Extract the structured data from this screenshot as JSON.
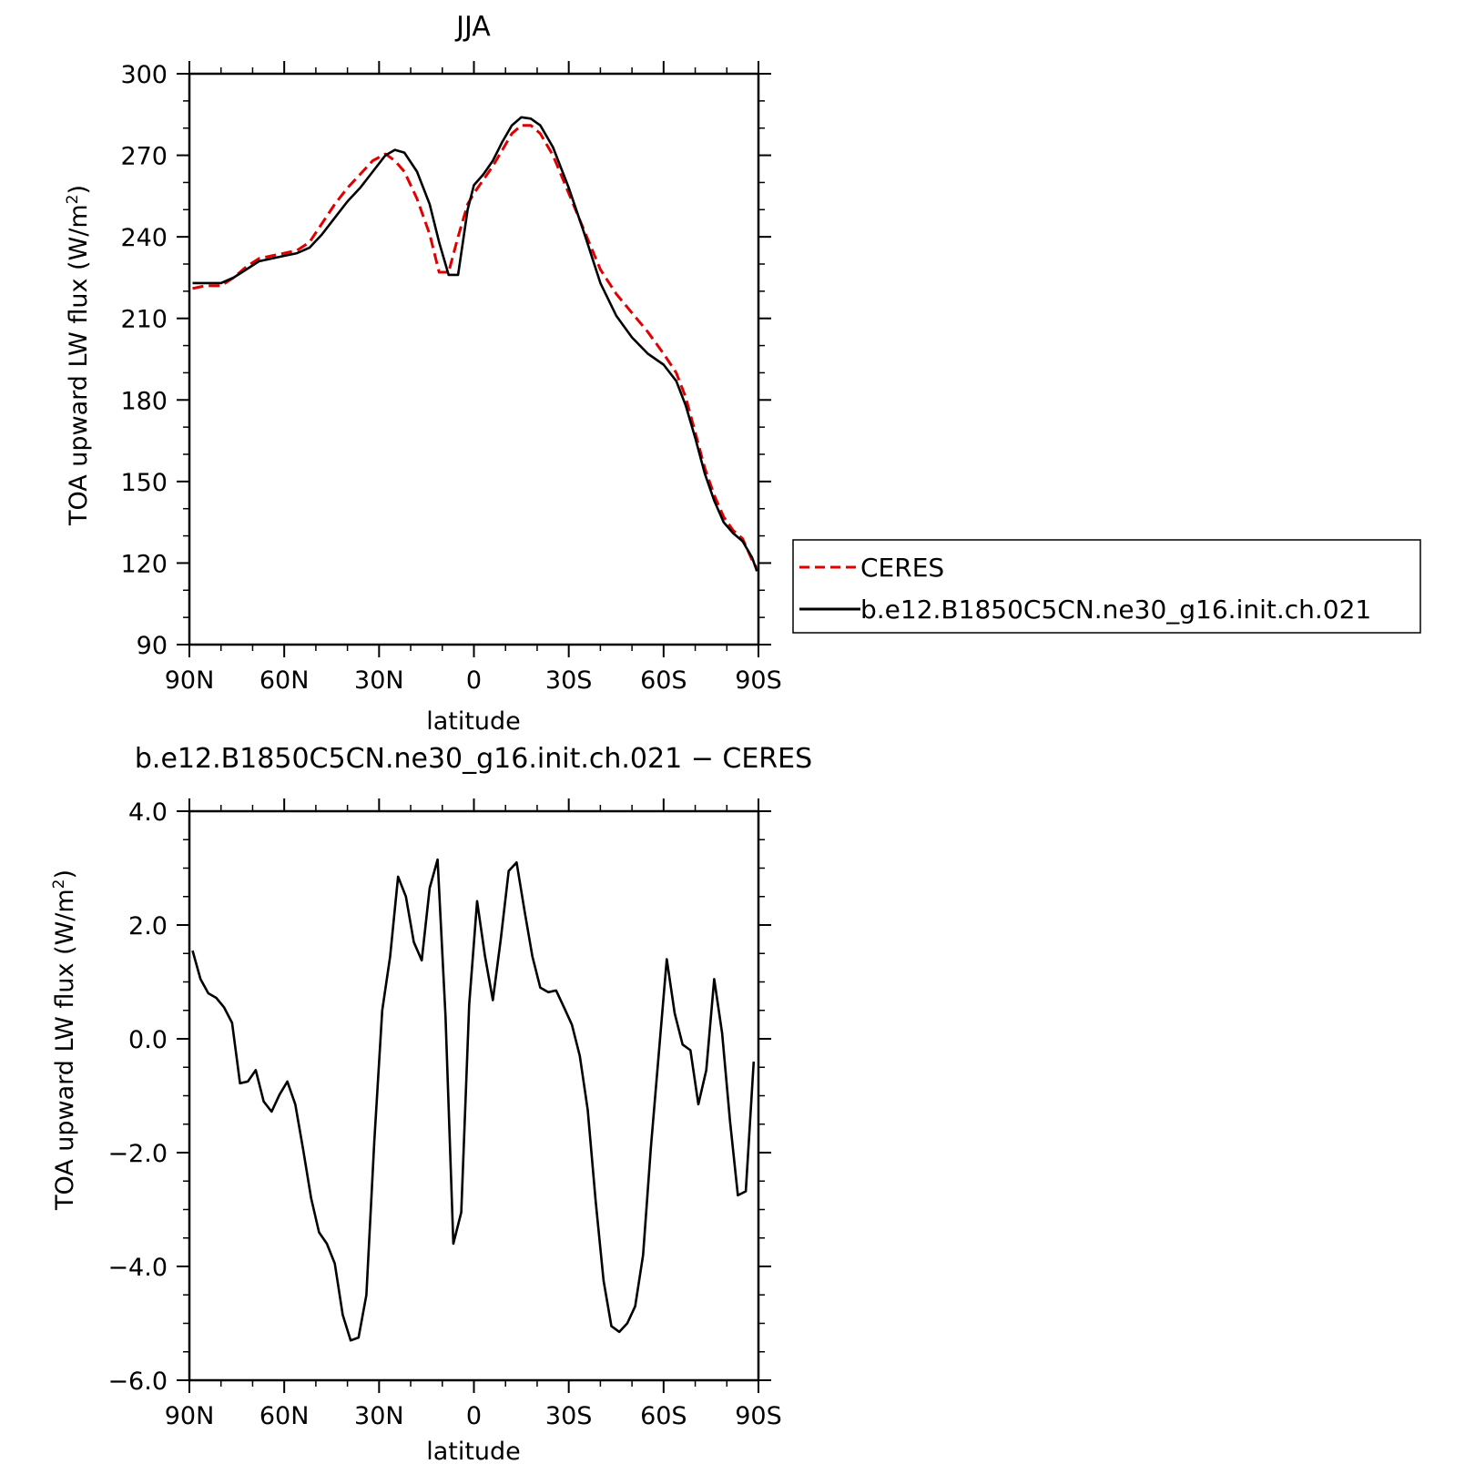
{
  "chart_data": [
    {
      "type": "line",
      "title": "JJA",
      "xlabel": "latitude",
      "ylabel": "TOA upward LW flux (W/m",
      "ylabel_sup": "2",
      "ylabel_close": ")",
      "xlim": [
        90,
        -90
      ],
      "ylim": [
        90,
        300
      ],
      "x_ticks": [
        {
          "value": 90,
          "label": "90N"
        },
        {
          "value": 60,
          "label": "60N"
        },
        {
          "value": 30,
          "label": "30N"
        },
        {
          "value": 0,
          "label": "0"
        },
        {
          "value": -30,
          "label": "30S"
        },
        {
          "value": -60,
          "label": "60S"
        },
        {
          "value": -90,
          "label": "90S"
        }
      ],
      "y_ticks": [
        {
          "value": 90,
          "label": "90"
        },
        {
          "value": 120,
          "label": "120"
        },
        {
          "value": 150,
          "label": "150"
        },
        {
          "value": 180,
          "label": "180"
        },
        {
          "value": 210,
          "label": "210"
        },
        {
          "value": 240,
          "label": "240"
        },
        {
          "value": 270,
          "label": "270"
        },
        {
          "value": 300,
          "label": "300"
        }
      ],
      "legend_position": "right, outside the plot",
      "series": [
        {
          "name": "CERES",
          "color": "#e00000",
          "dash": "dashed",
          "points": [
            [
              89,
              221
            ],
            [
              85,
              222
            ],
            [
              80,
              222
            ],
            [
              76,
              225
            ],
            [
              72,
              229
            ],
            [
              68,
              232
            ],
            [
              64,
              233
            ],
            [
              60,
              234
            ],
            [
              56,
              235
            ],
            [
              52,
              238
            ],
            [
              48,
              245
            ],
            [
              44,
              252
            ],
            [
              40,
              258
            ],
            [
              36,
              263
            ],
            [
              32,
              268
            ],
            [
              28,
              270.5
            ],
            [
              25,
              268
            ],
            [
              22,
              264
            ],
            [
              18,
              254
            ],
            [
              14,
              241
            ],
            [
              11,
              227
            ],
            [
              8,
              227
            ],
            [
              5,
              240
            ],
            [
              2,
              252
            ],
            [
              0,
              256
            ],
            [
              -3,
              261
            ],
            [
              -6,
              266
            ],
            [
              -9,
              272
            ],
            [
              -12,
              278
            ],
            [
              -15,
              281
            ],
            [
              -18,
              281
            ],
            [
              -21,
              278
            ],
            [
              -25,
              270
            ],
            [
              -30,
              256
            ],
            [
              -35,
              242
            ],
            [
              -40,
              228
            ],
            [
              -45,
              219
            ],
            [
              -50,
              212
            ],
            [
              -55,
              205
            ],
            [
              -60,
              197
            ],
            [
              -64,
              190
            ],
            [
              -67,
              181
            ],
            [
              -70,
              168
            ],
            [
              -73,
              155
            ],
            [
              -76,
              145
            ],
            [
              -79,
              137
            ],
            [
              -82,
              132
            ],
            [
              -85,
              129
            ],
            [
              -88,
              121
            ],
            [
              -89.5,
              118
            ]
          ]
        },
        {
          "name": "b.e12.B1850C5CN.ne30_g16.init.ch.021",
          "color": "#000000",
          "dash": "solid",
          "points": [
            [
              89,
              223
            ],
            [
              85,
              223
            ],
            [
              80,
              223
            ],
            [
              76,
              225
            ],
            [
              72,
              228
            ],
            [
              68,
              231
            ],
            [
              64,
              232
            ],
            [
              60,
              233
            ],
            [
              56,
              234
            ],
            [
              52,
              236
            ],
            [
              48,
              241
            ],
            [
              44,
              247
            ],
            [
              40,
              253
            ],
            [
              36,
              258
            ],
            [
              32,
              264
            ],
            [
              28,
              270
            ],
            [
              25,
              272
            ],
            [
              22,
              271
            ],
            [
              18,
              264
            ],
            [
              14,
              252
            ],
            [
              11,
              238
            ],
            [
              8,
              226
            ],
            [
              5,
              226
            ],
            [
              2,
              250
            ],
            [
              0,
              259
            ],
            [
              -3,
              263
            ],
            [
              -6,
              268
            ],
            [
              -9,
              275
            ],
            [
              -12,
              281
            ],
            [
              -15,
              284
            ],
            [
              -18,
              283.5
            ],
            [
              -21,
              281
            ],
            [
              -25,
              273
            ],
            [
              -30,
              258
            ],
            [
              -35,
              241
            ],
            [
              -40,
              223
            ],
            [
              -45,
              211
            ],
            [
              -50,
              203
            ],
            [
              -55,
              197
            ],
            [
              -60,
              193
            ],
            [
              -64,
              187
            ],
            [
              -67,
              178
            ],
            [
              -70,
              166
            ],
            [
              -73,
              153
            ],
            [
              -76,
              143
            ],
            [
              -79,
              135
            ],
            [
              -82,
              131
            ],
            [
              -85,
              128
            ],
            [
              -88,
              122
            ],
            [
              -89.5,
              117
            ]
          ]
        }
      ]
    },
    {
      "type": "line",
      "title": "b.e12.B1850C5CN.ne30_g16.init.ch.021 − CERES",
      "xlabel": "latitude",
      "ylabel": "TOA upward LW flux (W/m",
      "ylabel_sup": "2",
      "ylabel_close": ")",
      "xlim": [
        90,
        -90
      ],
      "ylim": [
        -6,
        4
      ],
      "x_ticks": [
        {
          "value": 90,
          "label": "90N"
        },
        {
          "value": 60,
          "label": "60N"
        },
        {
          "value": 30,
          "label": "30N"
        },
        {
          "value": 0,
          "label": "0"
        },
        {
          "value": -30,
          "label": "30S"
        },
        {
          "value": -60,
          "label": "60S"
        },
        {
          "value": -90,
          "label": "90S"
        }
      ],
      "y_ticks": [
        {
          "value": -6,
          "label": "−6.0"
        },
        {
          "value": -4,
          "label": "−4.0"
        },
        {
          "value": -2,
          "label": "−2.0"
        },
        {
          "value": 0,
          "label": "0.0"
        },
        {
          "value": 2,
          "label": "2.0"
        },
        {
          "value": 4,
          "label": "4.0"
        }
      ],
      "series": [
        {
          "color": "#000000",
          "dash": "solid",
          "points": [
            [
              89,
              1.55
            ],
            [
              86.5,
              1.05
            ],
            [
              84,
              0.8
            ],
            [
              81.5,
              0.72
            ],
            [
              79,
              0.55
            ],
            [
              76.5,
              0.28
            ],
            [
              74,
              -0.78
            ],
            [
              71.5,
              -0.75
            ],
            [
              69,
              -0.55
            ],
            [
              66.5,
              -1.1
            ],
            [
              64,
              -1.28
            ],
            [
              61.5,
              -0.98
            ],
            [
              59,
              -0.75
            ],
            [
              56.5,
              -1.15
            ],
            [
              54,
              -1.95
            ],
            [
              51.5,
              -2.8
            ],
            [
              49,
              -3.4
            ],
            [
              46.5,
              -3.6
            ],
            [
              44,
              -3.95
            ],
            [
              41.5,
              -4.85
            ],
            [
              39,
              -5.3
            ],
            [
              36.5,
              -5.25
            ],
            [
              34,
              -4.5
            ],
            [
              31.5,
              -1.8
            ],
            [
              29,
              0.5
            ],
            [
              26.5,
              1.45
            ],
            [
              24,
              2.85
            ],
            [
              21.5,
              2.5
            ],
            [
              19,
              1.7
            ],
            [
              16.5,
              1.38
            ],
            [
              14,
              2.65
            ],
            [
              11.5,
              3.15
            ],
            [
              9,
              0.4
            ],
            [
              6.5,
              -3.6
            ],
            [
              4,
              -3.05
            ],
            [
              1.5,
              0.6
            ],
            [
              -1,
              2.42
            ],
            [
              -3.5,
              1.45
            ],
            [
              -6,
              0.68
            ],
            [
              -8.5,
              1.75
            ],
            [
              -11,
              2.95
            ],
            [
              -13.5,
              3.1
            ],
            [
              -16,
              2.25
            ],
            [
              -18.5,
              1.45
            ],
            [
              -21,
              0.9
            ],
            [
              -23.5,
              0.82
            ],
            [
              -26,
              0.85
            ],
            [
              -28.5,
              0.55
            ],
            [
              -31,
              0.25
            ],
            [
              -33.5,
              -0.3
            ],
            [
              -36,
              -1.25
            ],
            [
              -38.5,
              -2.85
            ],
            [
              -41,
              -4.25
            ],
            [
              -43.5,
              -5.05
            ],
            [
              -46,
              -5.15
            ],
            [
              -48.5,
              -5.0
            ],
            [
              -51,
              -4.7
            ],
            [
              -53.5,
              -3.8
            ],
            [
              -56,
              -1.9
            ],
            [
              -58.5,
              -0.25
            ],
            [
              -61,
              1.4
            ],
            [
              -63.5,
              0.45
            ],
            [
              -66,
              -0.1
            ],
            [
              -68.5,
              -0.2
            ],
            [
              -71,
              -1.15
            ],
            [
              -73.5,
              -0.55
            ],
            [
              -76,
              1.05
            ],
            [
              -78.5,
              0.1
            ],
            [
              -81,
              -1.45
            ],
            [
              -83.5,
              -2.75
            ],
            [
              -86,
              -2.68
            ],
            [
              -88.5,
              -0.4
            ]
          ]
        }
      ]
    }
  ]
}
